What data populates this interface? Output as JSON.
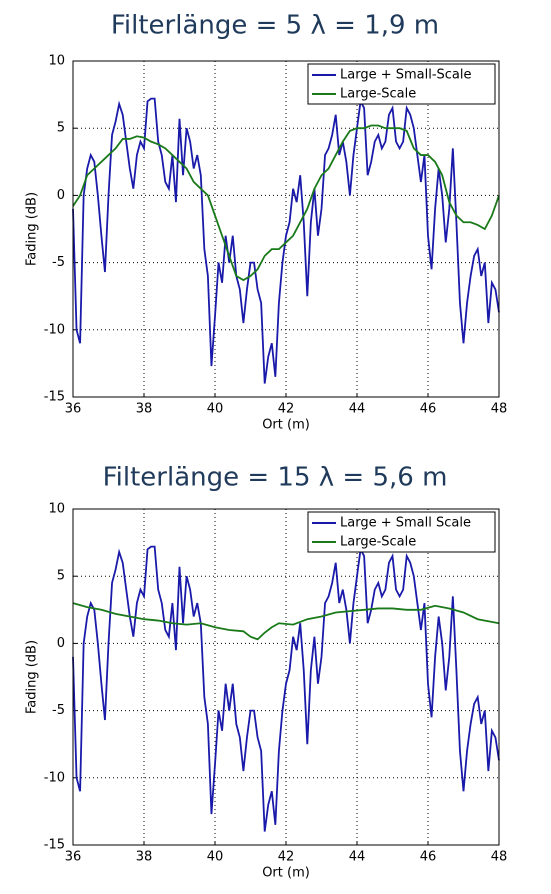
{
  "chart_data": [
    {
      "type": "line",
      "title": "Filterlänge = 5 λ = 1,9 m",
      "xlabel": "Ort (m)",
      "ylabel": "Fading (dB)",
      "xlim": [
        36,
        48
      ],
      "xticks": [
        36,
        38,
        40,
        42,
        44,
        46,
        48
      ],
      "ylim": [
        -15,
        10
      ],
      "yticks": [
        -15,
        -10,
        -5,
        0,
        5,
        10
      ],
      "grid": true,
      "legend": "upper right",
      "series": [
        {
          "name": "Large + Small-Scale",
          "color": "#1a1aaa",
          "x": [
            36.0,
            36.1,
            36.2,
            36.3,
            36.4,
            36.5,
            36.6,
            36.7,
            36.8,
            36.9,
            37.0,
            37.1,
            37.2,
            37.3,
            37.4,
            37.5,
            37.6,
            37.7,
            37.8,
            37.9,
            38.0,
            38.1,
            38.2,
            38.3,
            38.4,
            38.5,
            38.6,
            38.7,
            38.8,
            38.9,
            39.0,
            39.1,
            39.2,
            39.3,
            39.4,
            39.5,
            39.6,
            39.7,
            39.8,
            39.9,
            40.0,
            40.1,
            40.2,
            40.3,
            40.4,
            40.5,
            40.6,
            40.7,
            40.8,
            40.9,
            41.0,
            41.1,
            41.2,
            41.3,
            41.4,
            41.5,
            41.6,
            41.7,
            41.8,
            41.9,
            42.0,
            42.1,
            42.2,
            42.3,
            42.4,
            42.5,
            42.6,
            42.7,
            42.8,
            42.9,
            43.0,
            43.1,
            43.2,
            43.3,
            43.4,
            43.5,
            43.6,
            43.7,
            43.8,
            43.9,
            44.0,
            44.1,
            44.2,
            44.3,
            44.4,
            44.5,
            44.6,
            44.7,
            44.8,
            44.9,
            45.0,
            45.1,
            45.2,
            45.3,
            45.4,
            45.5,
            45.6,
            45.7,
            45.8,
            45.9,
            46.0,
            46.1,
            46.2,
            46.3,
            46.4,
            46.5,
            46.6,
            46.7,
            46.8,
            46.9,
            47.0,
            47.1,
            47.2,
            47.3,
            47.4,
            47.5,
            47.6,
            47.7,
            47.8,
            47.9,
            48.0
          ],
          "values": [
            -1,
            -10,
            -11,
            0,
            2,
            3,
            2.5,
            0,
            -3,
            -5.7,
            0,
            4.5,
            5.5,
            6.8,
            6,
            4,
            2,
            0.5,
            3,
            4,
            3.5,
            7,
            7.2,
            7.2,
            4,
            3,
            1,
            0.5,
            3,
            -0.5,
            5.7,
            1.5,
            5,
            4,
            2,
            3,
            1.5,
            -4,
            -6,
            -12.7,
            -9,
            -5,
            -6.5,
            -3,
            -5,
            -3,
            -6,
            -7,
            -9.5,
            -7,
            -5,
            -5,
            -7,
            -8,
            -14,
            -12,
            -11,
            -13.5,
            -8,
            -5,
            -3,
            -2,
            0.5,
            -0.5,
            1.5,
            -2,
            -7.5,
            -2,
            0.5,
            -3,
            -1,
            3,
            3.5,
            4.5,
            6,
            3,
            4,
            2.5,
            0,
            3,
            5,
            7,
            6.5,
            1.5,
            2.5,
            4,
            4.5,
            3.5,
            4,
            6,
            6.5,
            4,
            3.5,
            4,
            6.5,
            6,
            5,
            3,
            1,
            3,
            -3,
            -5.5,
            -1,
            2,
            0,
            -3.5,
            -1,
            3.5,
            -2,
            -8,
            -11,
            -8,
            -6,
            -4.5,
            -4,
            -6,
            -5,
            -9.5,
            -6.5,
            -7,
            -8.7
          ]
        },
        {
          "name": "Large-Scale",
          "color": "#1a7a1a",
          "x": [
            36.0,
            36.2,
            36.4,
            36.6,
            36.8,
            37.0,
            37.2,
            37.4,
            37.6,
            37.8,
            38.0,
            38.2,
            38.4,
            38.6,
            38.8,
            39.0,
            39.2,
            39.4,
            39.6,
            39.8,
            40.0,
            40.2,
            40.4,
            40.6,
            40.8,
            41.0,
            41.2,
            41.4,
            41.6,
            41.8,
            42.0,
            42.2,
            42.4,
            42.6,
            42.8,
            43.0,
            43.2,
            43.4,
            43.6,
            43.8,
            44.0,
            44.2,
            44.4,
            44.6,
            44.8,
            45.0,
            45.2,
            45.4,
            45.6,
            45.8,
            46.0,
            46.2,
            46.4,
            46.6,
            46.8,
            47.0,
            47.2,
            47.4,
            47.6,
            47.8,
            48.0
          ],
          "values": [
            -0.8,
            0,
            1.5,
            2,
            2.5,
            3,
            3.5,
            4.2,
            4.2,
            4.4,
            4.3,
            4,
            3.8,
            3.5,
            3,
            2.5,
            2,
            1,
            0.5,
            0,
            -1.5,
            -3,
            -4.5,
            -6,
            -6.3,
            -6,
            -5.5,
            -4.5,
            -4,
            -4,
            -3.5,
            -3,
            -2,
            -1,
            0.5,
            1.5,
            2,
            3,
            4,
            4.8,
            5,
            5,
            5.2,
            5.2,
            5,
            5,
            5,
            4.8,
            3.5,
            3,
            3,
            2.5,
            1.5,
            -0.5,
            -1.5,
            -2,
            -2,
            -2.2,
            -2.5,
            -1.5,
            0
          ]
        }
      ]
    },
    {
      "type": "line",
      "title": "Filterlänge = 15 λ = 5,6 m",
      "xlabel": "Ort (m)",
      "ylabel": "Fading (dB)",
      "xlim": [
        36,
        48
      ],
      "xticks": [
        36,
        38,
        40,
        42,
        44,
        46,
        48
      ],
      "ylim": [
        -15,
        10
      ],
      "yticks": [
        -15,
        -10,
        -5,
        0,
        5,
        10
      ],
      "grid": true,
      "legend": "upper right",
      "series": [
        {
          "name": "Large + Small Scale",
          "color": "#1a1aaa",
          "x": [
            36.0,
            36.1,
            36.2,
            36.3,
            36.4,
            36.5,
            36.6,
            36.7,
            36.8,
            36.9,
            37.0,
            37.1,
            37.2,
            37.3,
            37.4,
            37.5,
            37.6,
            37.7,
            37.8,
            37.9,
            38.0,
            38.1,
            38.2,
            38.3,
            38.4,
            38.5,
            38.6,
            38.7,
            38.8,
            38.9,
            39.0,
            39.1,
            39.2,
            39.3,
            39.4,
            39.5,
            39.6,
            39.7,
            39.8,
            39.9,
            40.0,
            40.1,
            40.2,
            40.3,
            40.4,
            40.5,
            40.6,
            40.7,
            40.8,
            40.9,
            41.0,
            41.1,
            41.2,
            41.3,
            41.4,
            41.5,
            41.6,
            41.7,
            41.8,
            41.9,
            42.0,
            42.1,
            42.2,
            42.3,
            42.4,
            42.5,
            42.6,
            42.7,
            42.8,
            42.9,
            43.0,
            43.1,
            43.2,
            43.3,
            43.4,
            43.5,
            43.6,
            43.7,
            43.8,
            43.9,
            44.0,
            44.1,
            44.2,
            44.3,
            44.4,
            44.5,
            44.6,
            44.7,
            44.8,
            44.9,
            45.0,
            45.1,
            45.2,
            45.3,
            45.4,
            45.5,
            45.6,
            45.7,
            45.8,
            45.9,
            46.0,
            46.1,
            46.2,
            46.3,
            46.4,
            46.5,
            46.6,
            46.7,
            46.8,
            46.9,
            47.0,
            47.1,
            47.2,
            47.3,
            47.4,
            47.5,
            47.6,
            47.7,
            47.8,
            47.9,
            48.0
          ],
          "values": [
            -1,
            -10,
            -11,
            0,
            2,
            3,
            2.5,
            0,
            -3,
            -5.7,
            0,
            4.5,
            5.5,
            6.8,
            6,
            4,
            2,
            0.5,
            3,
            4,
            3.5,
            7,
            7.2,
            7.2,
            4,
            3,
            1,
            0.5,
            3,
            -0.5,
            5.7,
            1.5,
            5,
            4,
            2,
            3,
            1.5,
            -4,
            -6,
            -12.7,
            -9,
            -5,
            -6.5,
            -3,
            -5,
            -3,
            -6,
            -7,
            -9.5,
            -7,
            -5,
            -5,
            -7,
            -8,
            -14,
            -12,
            -11,
            -13.5,
            -8,
            -5,
            -3,
            -2,
            0.5,
            -0.5,
            1.5,
            -2,
            -7.5,
            -2,
            0.5,
            -3,
            -1,
            3,
            3.5,
            4.5,
            6,
            3,
            4,
            2.5,
            0,
            3,
            5,
            7,
            6.5,
            1.5,
            2.5,
            4,
            4.5,
            3.5,
            4,
            6,
            6.5,
            4,
            3.5,
            4,
            6.5,
            6,
            5,
            3,
            1,
            3,
            -3,
            -5.5,
            -1,
            2,
            0,
            -3.5,
            -1,
            3.5,
            -2,
            -8,
            -11,
            -8,
            -6,
            -4.5,
            -4,
            -6,
            -5,
            -9.5,
            -6.5,
            -7,
            -8.7
          ]
        },
        {
          "name": "Large-Scale",
          "color": "#1a7a1a",
          "x": [
            36.0,
            36.4,
            36.8,
            37.2,
            37.6,
            38.0,
            38.4,
            38.8,
            39.2,
            39.6,
            40.0,
            40.4,
            40.8,
            41.0,
            41.2,
            41.4,
            41.6,
            41.8,
            42.2,
            42.6,
            43.0,
            43.4,
            43.8,
            44.2,
            44.6,
            45.0,
            45.4,
            45.8,
            46.2,
            46.6,
            47.0,
            47.4,
            48.0
          ],
          "values": [
            3,
            2.7,
            2.5,
            2.2,
            2,
            1.8,
            1.7,
            1.5,
            1.4,
            1.5,
            1.2,
            1,
            0.9,
            0.5,
            0.3,
            0.8,
            1.2,
            1.5,
            1.4,
            1.8,
            2,
            2.3,
            2.4,
            2.5,
            2.6,
            2.6,
            2.5,
            2.5,
            2.8,
            2.6,
            2.3,
            1.8,
            1.5
          ]
        }
      ]
    }
  ]
}
